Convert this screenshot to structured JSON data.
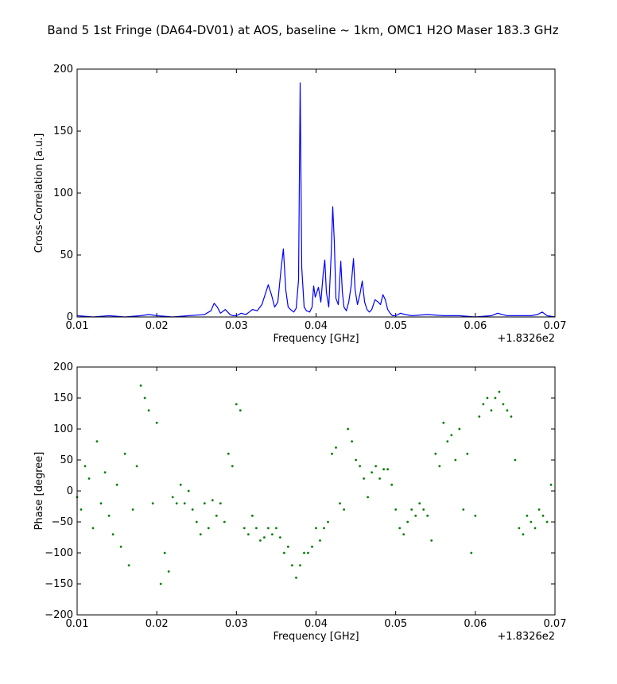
{
  "figure_title": "Band 5 1st Fringe (DA64-DV01) at AOS, baseline ~ 1km, OMC1 H2O Maser 183.3 GHz",
  "chart_data": [
    {
      "type": "line",
      "xlabel": "Frequency [GHz]",
      "ylabel": "Cross-Correlation [a.u.]",
      "x_offset_label": "+1.8326e2",
      "xlim": [
        0.01,
        0.07
      ],
      "ylim": [
        0,
        200
      ],
      "xticks": [
        0.01,
        0.02,
        0.03,
        0.04,
        0.05,
        0.06,
        0.07
      ],
      "xtick_labels": [
        "0.01",
        "0.02",
        "0.03",
        "0.04",
        "0.05",
        "0.06",
        "0.07"
      ],
      "yticks": [
        0,
        50,
        100,
        150,
        200
      ],
      "ytick_labels": [
        "0",
        "50",
        "100",
        "150",
        "200"
      ],
      "grid": false,
      "series": [
        {
          "color": "#0000ff",
          "x": [
            0.01,
            0.012,
            0.014,
            0.016,
            0.018,
            0.019,
            0.02,
            0.022,
            0.024,
            0.026,
            0.0268,
            0.0272,
            0.0276,
            0.028,
            0.0286,
            0.0292,
            0.0296,
            0.03,
            0.0306,
            0.0312,
            0.0316,
            0.032,
            0.0326,
            0.0332,
            0.0337,
            0.034,
            0.0344,
            0.0348,
            0.0352,
            0.0356,
            0.0359,
            0.0362,
            0.0365,
            0.0368,
            0.0372,
            0.0375,
            0.0378,
            0.038,
            0.0382,
            0.0385,
            0.0388,
            0.0392,
            0.0395,
            0.0397,
            0.0399,
            0.0401,
            0.0403,
            0.0406,
            0.0409,
            0.0411,
            0.0413,
            0.0416,
            0.0419,
            0.0421,
            0.0423,
            0.0425,
            0.0428,
            0.0431,
            0.0433,
            0.0435,
            0.0438,
            0.0441,
            0.0444,
            0.0447,
            0.0449,
            0.0452,
            0.0455,
            0.0458,
            0.0461,
            0.0464,
            0.0467,
            0.047,
            0.0474,
            0.0478,
            0.0481,
            0.0484,
            0.0487,
            0.049,
            0.0493,
            0.0496,
            0.05,
            0.0506,
            0.0512,
            0.052,
            0.054,
            0.056,
            0.058,
            0.06,
            0.062,
            0.0628,
            0.0634,
            0.064,
            0.066,
            0.067,
            0.0678,
            0.0684,
            0.069,
            0.07
          ],
          "y": [
            1,
            0,
            1,
            0,
            1,
            2,
            1,
            0,
            1,
            2,
            5,
            11,
            8,
            3,
            6,
            2,
            1,
            1,
            3,
            2,
            4,
            6,
            5,
            10,
            20,
            26,
            18,
            8,
            12,
            38,
            55,
            22,
            8,
            6,
            4,
            7,
            30,
            189,
            40,
            8,
            5,
            4,
            8,
            25,
            16,
            20,
            24,
            12,
            35,
            46,
            20,
            8,
            50,
            89,
            60,
            15,
            10,
            45,
            20,
            8,
            5,
            12,
            25,
            47,
            22,
            10,
            18,
            29,
            12,
            6,
            4,
            6,
            14,
            12,
            10,
            18,
            14,
            6,
            3,
            1,
            1,
            3,
            2,
            1,
            2,
            1,
            1,
            0,
            1,
            3,
            2,
            1,
            1,
            1,
            2,
            4,
            1,
            0
          ]
        }
      ]
    },
    {
      "type": "scatter",
      "xlabel": "Frequency [GHz]",
      "ylabel": "Phase [degree]",
      "x_offset_label": "+1.8326e2",
      "xlim": [
        0.01,
        0.07
      ],
      "ylim": [
        -200,
        200
      ],
      "xticks": [
        0.01,
        0.02,
        0.03,
        0.04,
        0.05,
        0.06,
        0.07
      ],
      "xtick_labels": [
        "0.01",
        "0.02",
        "0.03",
        "0.04",
        "0.05",
        "0.06",
        "0.07"
      ],
      "yticks": [
        -200,
        -150,
        -100,
        -50,
        0,
        50,
        100,
        150,
        200
      ],
      "ytick_labels": [
        "−200",
        "−150",
        "−100",
        "−50",
        "0",
        "50",
        "100",
        "150",
        "200"
      ],
      "grid": false,
      "series": [
        {
          "color": "#007f00",
          "x": [
            0.01,
            0.0105,
            0.011,
            0.0115,
            0.012,
            0.0125,
            0.013,
            0.0135,
            0.014,
            0.0145,
            0.015,
            0.0155,
            0.016,
            0.0165,
            0.017,
            0.0175,
            0.018,
            0.0185,
            0.019,
            0.0195,
            0.02,
            0.0205,
            0.021,
            0.0215,
            0.022,
            0.0225,
            0.023,
            0.0235,
            0.024,
            0.0245,
            0.025,
            0.0255,
            0.026,
            0.0265,
            0.027,
            0.0275,
            0.028,
            0.0285,
            0.029,
            0.0295,
            0.03,
            0.0305,
            0.031,
            0.0315,
            0.032,
            0.0325,
            0.033,
            0.0335,
            0.034,
            0.0345,
            0.035,
            0.0355,
            0.036,
            0.0365,
            0.037,
            0.0375,
            0.038,
            0.0385,
            0.039,
            0.0395,
            0.04,
            0.0405,
            0.041,
            0.0415,
            0.042,
            0.0425,
            0.043,
            0.0435,
            0.044,
            0.0445,
            0.045,
            0.0455,
            0.046,
            0.0465,
            0.047,
            0.0475,
            0.048,
            0.0485,
            0.049,
            0.0495,
            0.05,
            0.0505,
            0.051,
            0.0515,
            0.052,
            0.0525,
            0.053,
            0.0535,
            0.054,
            0.0545,
            0.055,
            0.0555,
            0.056,
            0.0565,
            0.057,
            0.0575,
            0.058,
            0.0585,
            0.059,
            0.0595,
            0.06,
            0.0605,
            0.061,
            0.0615,
            0.062,
            0.0625,
            0.063,
            0.0635,
            0.064,
            0.0645,
            0.065,
            0.0655,
            0.066,
            0.0665,
            0.067,
            0.0675,
            0.068,
            0.0685,
            0.069,
            0.0695
          ],
          "y": [
            -10,
            -30,
            40,
            20,
            -60,
            80,
            -20,
            30,
            -40,
            -70,
            10,
            -90,
            60,
            -120,
            -30,
            40,
            170,
            150,
            130,
            -20,
            110,
            -150,
            -100,
            -130,
            -10,
            -20,
            10,
            -20,
            0,
            -30,
            -50,
            -70,
            -20,
            -60,
            -15,
            -40,
            -20,
            -50,
            60,
            40,
            140,
            130,
            -60,
            -70,
            -40,
            -60,
            -80,
            -75,
            -60,
            -70,
            -60,
            -75,
            -100,
            -90,
            -120,
            -140,
            -120,
            -100,
            -100,
            -90,
            -60,
            -80,
            -60,
            -50,
            60,
            70,
            -20,
            -30,
            100,
            80,
            50,
            40,
            20,
            -10,
            30,
            40,
            20,
            35,
            35,
            10,
            -30,
            -60,
            -70,
            -50,
            -30,
            -40,
            -20,
            -30,
            -40,
            -80,
            60,
            40,
            110,
            80,
            90,
            50,
            100,
            -30,
            60,
            -100,
            -40,
            120,
            140,
            150,
            130,
            150,
            160,
            140,
            130,
            120,
            50,
            -60,
            -70,
            -40,
            -50,
            -60,
            -30,
            -40,
            -50,
            10
          ]
        }
      ]
    }
  ]
}
